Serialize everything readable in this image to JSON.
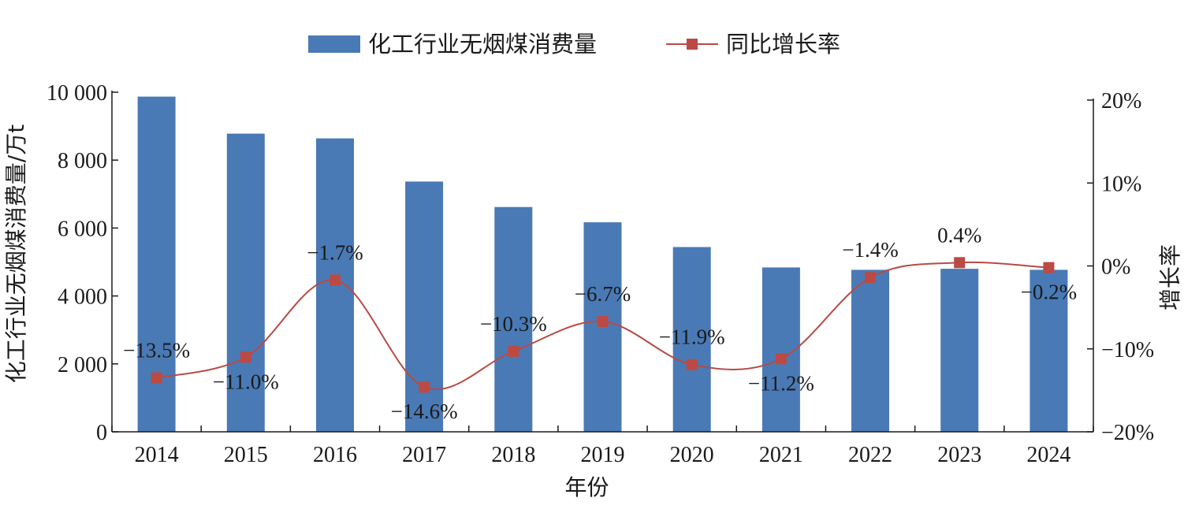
{
  "chart_data": {
    "type": "bar",
    "categories": [
      "2014",
      "2015",
      "2016",
      "2017",
      "2018",
      "2019",
      "2020",
      "2021",
      "2022",
      "2023",
      "2024"
    ],
    "series": [
      {
        "name": "化工行业无烟煤消费量",
        "type": "bar",
        "axis": "left",
        "values": [
          9870,
          8780,
          8640,
          7370,
          6620,
          6170,
          5440,
          4840,
          4770,
          4800,
          4770
        ]
      },
      {
        "name": "同比增长率",
        "type": "line",
        "axis": "right",
        "values": [
          -13.5,
          -11.0,
          -1.7,
          -14.6,
          -10.3,
          -6.7,
          -11.9,
          -11.2,
          -1.4,
          0.4,
          -0.2
        ],
        "labels": [
          "−13.5%",
          "−11.0%",
          "−1.7%",
          "−14.6%",
          "−10.3%",
          "−6.7%",
          "−11.9%",
          "−11.2%",
          "−1.4%",
          "0.4%",
          "−0.2%"
        ]
      }
    ],
    "xlabel": "年份",
    "ylabel": "化工行业无烟煤消费量/万t",
    "y2label": "增长率",
    "ylim": [
      0,
      10000
    ],
    "y2lim": [
      -20,
      20
    ],
    "yticks": [
      "0",
      "2 000",
      "4 000",
      "6 000",
      "8 000",
      "10 000"
    ],
    "y2ticks": [
      "−20%",
      "−10%",
      "0%",
      "10%",
      "20%"
    ],
    "legend_position": "top",
    "grid": false,
    "colors": {
      "bar": "#4a7ab5",
      "line": "#b84a45",
      "marker": "#bb4a44",
      "axis": "#1a1a1a"
    }
  }
}
